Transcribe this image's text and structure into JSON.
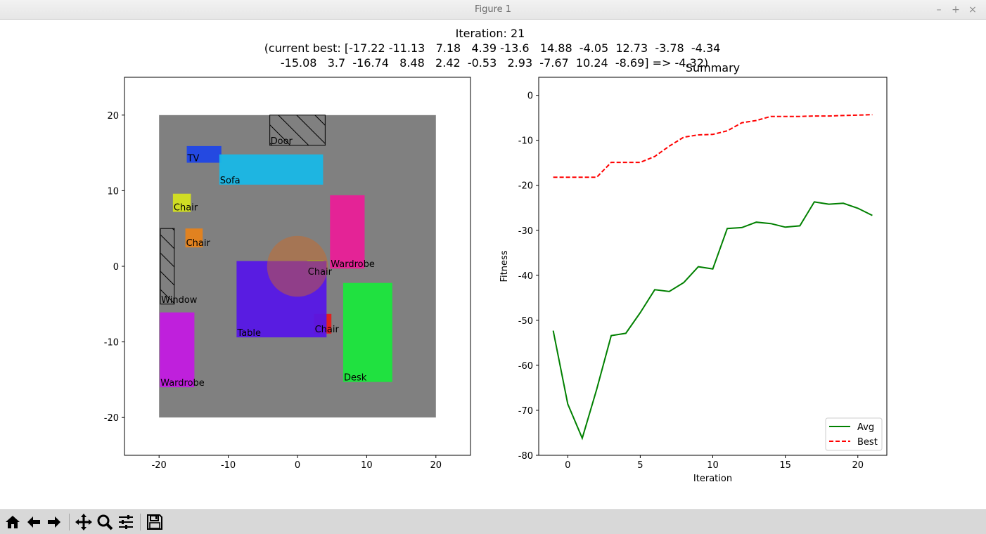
{
  "window": {
    "title": "Figure 1",
    "controls": [
      "–",
      "+",
      "×"
    ]
  },
  "figure": {
    "suptitle_lines": [
      "Iteration: 21",
      "(current best: [-17.22 -11.13   7.18   4.39 -13.6   14.88  -4.05  12.73  -3.78  -4.34",
      "-15.08   3.7  -16.74   8.48   2.42  -0.53   2.93  -7.67  10.24  -8.69] => -4.32)"
    ]
  },
  "layout_plot": {
    "xlim": [
      -25,
      25
    ],
    "ylim": [
      -25,
      25
    ],
    "xticks": [
      -20,
      -10,
      0,
      10,
      20
    ],
    "yticks": [
      -20,
      -10,
      0,
      10,
      20
    ],
    "room": {
      "x": [
        -20,
        20
      ],
      "y": [
        -20,
        20
      ],
      "color": "#808080"
    },
    "items": [
      {
        "label": "Door",
        "x": -4,
        "y": 16,
        "w": 8,
        "h": 4,
        "color": "none",
        "hatch": true
      },
      {
        "label": "TV",
        "x": -16,
        "y": 13.7,
        "w": 5,
        "h": 2.2,
        "color": "#1f46e6",
        "hatch": false
      },
      {
        "label": "Sofa",
        "x": -11.3,
        "y": 10.8,
        "w": 15,
        "h": 4,
        "color": "#18b7e6",
        "hatch": false
      },
      {
        "label": "Chair",
        "x": -18,
        "y": 7.2,
        "w": 2.6,
        "h": 2.4,
        "color": "#d4e11f",
        "hatch": false
      },
      {
        "label": "Chair",
        "x": -16.2,
        "y": 2.5,
        "w": 2.5,
        "h": 2.5,
        "color": "#e6821a",
        "hatch": false
      },
      {
        "label": "Wardrobe",
        "x": 4.7,
        "y": -0.3,
        "w": 5,
        "h": 9.7,
        "color": "#e91e97",
        "hatch": false
      },
      {
        "label": "Window",
        "x": -19.8,
        "y": -5,
        "w": 2,
        "h": 10,
        "color": "none",
        "hatch": true
      },
      {
        "label": "Table",
        "x": -8.8,
        "y": -9.4,
        "w": 13,
        "h": 10.1,
        "color": "#5616e6",
        "hatch": false
      },
      {
        "label": "Chair",
        "x": 1.4,
        "y": -1.3,
        "w": 2.4,
        "h": 2.1,
        "color": "#7ee61a",
        "hatch": false
      },
      {
        "label": "Chair",
        "x": 2.4,
        "y": -8.9,
        "w": 2.5,
        "h": 2.6,
        "color": "#e61a1a",
        "hatch": false
      },
      {
        "label": "Desk",
        "x": 6.6,
        "y": -15.3,
        "w": 7.1,
        "h": 13.1,
        "color": "#1ae63c",
        "hatch": false
      },
      {
        "label": "Wardrobe",
        "x": -19.9,
        "y": -16,
        "w": 5,
        "h": 9.9,
        "color": "#c21ae0",
        "hatch": false
      }
    ],
    "circle": {
      "cx": 0,
      "cy": 0,
      "r": 4.4,
      "color": "#d2691e"
    }
  },
  "chart_data": {
    "type": "line",
    "title": "Summary",
    "xlabel": "Iteration",
    "ylabel": "Fitness",
    "xlim": [
      -2,
      22
    ],
    "ylim": [
      -80,
      4
    ],
    "xticks": [
      0,
      5,
      10,
      15,
      20
    ],
    "yticks": [
      0,
      -10,
      -20,
      -30,
      -40,
      -50,
      -60,
      -70,
      -80
    ],
    "x": [
      -1,
      0,
      1,
      2,
      3,
      4,
      5,
      6,
      7,
      8,
      9,
      10,
      11,
      12,
      13,
      14,
      15,
      16,
      17,
      18,
      19,
      20,
      21
    ],
    "series": [
      {
        "name": "Avg",
        "color": "#008000",
        "dash": false,
        "values": [
          -52.3,
          -68.6,
          -76.2,
          -65.3,
          -53.4,
          -52.9,
          -48.3,
          -43.2,
          -43.6,
          -41.6,
          -38.1,
          -38.6,
          -29.6,
          -29.4,
          -28.2,
          -28.5,
          -29.3,
          -29.0,
          -23.7,
          -24.2,
          -24.0,
          -25.1,
          -26.7
        ]
      },
      {
        "name": "Best",
        "color": "#ff0000",
        "dash": true,
        "values": [
          -18.2,
          -18.2,
          -18.2,
          -18.2,
          -14.9,
          -14.9,
          -14.9,
          -13.6,
          -11.3,
          -9.3,
          -8.8,
          -8.7,
          -7.9,
          -6.1,
          -5.6,
          -4.7,
          -4.7,
          -4.7,
          -4.6,
          -4.6,
          -4.5,
          -4.4,
          -4.3
        ]
      }
    ],
    "legend": "lower-right"
  },
  "toolbar": {
    "buttons": [
      "home-icon",
      "back-arrow-icon",
      "forward-arrow-icon",
      "pan-icon",
      "zoom-icon",
      "configure-subplots-icon",
      "save-icon"
    ]
  }
}
